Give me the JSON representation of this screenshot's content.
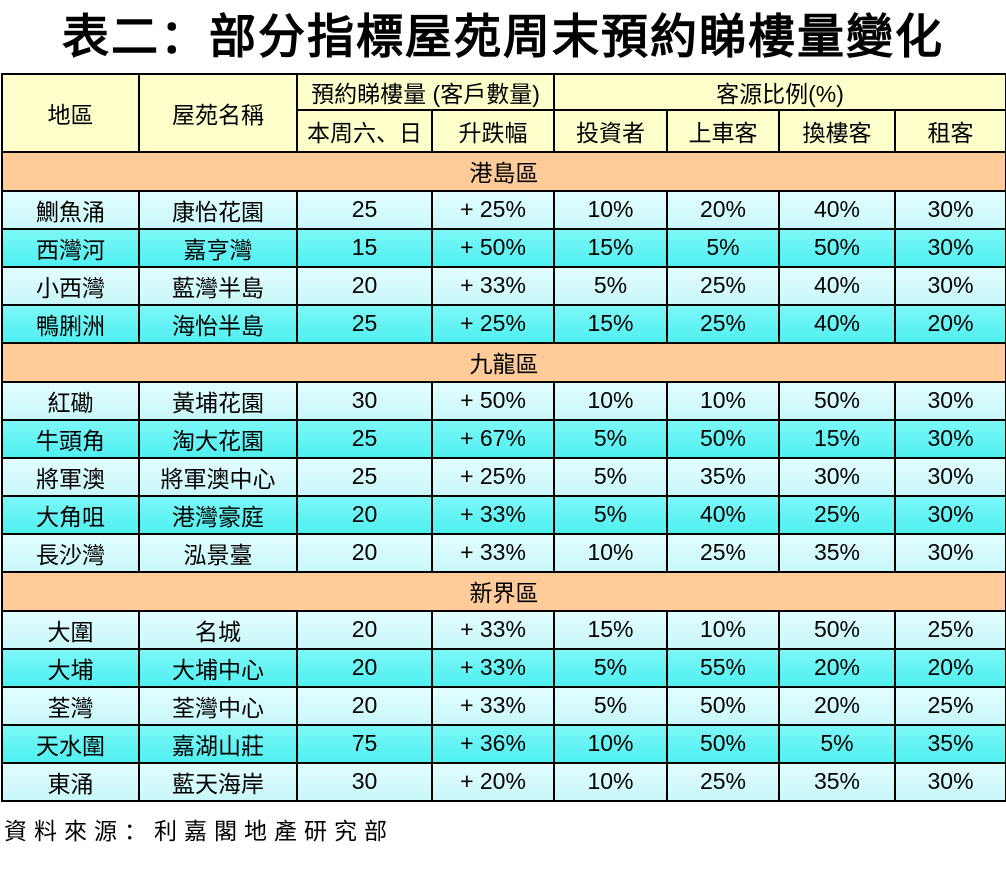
{
  "title": "表二：部分指標屋苑周末預約睇樓量變化",
  "source_note": "資料來源：利嘉閣地產研究部",
  "colors": {
    "header_bg": "#FFFFCC",
    "section_bg": "#FFCC99",
    "row_light": "#CCFFFF",
    "row_dark": "#5FF3F3",
    "border": "#000000",
    "background": "#FFFFFF"
  },
  "table": {
    "headers": {
      "district": "地區",
      "estate": "屋苑名稱",
      "bookings_group": "預約睇樓量 (客戶數量)",
      "bookings_sub": [
        "本周六、日",
        "升跌幅"
      ],
      "source_group": "客源比例(%)",
      "source_sub": [
        "投資者",
        "上車客",
        "換樓客",
        "租客"
      ]
    },
    "sections": [
      {
        "name": "港島區",
        "rows": [
          [
            "鰂魚涌",
            "康怡花園",
            "25",
            "+ 25%",
            "10%",
            "20%",
            "40%",
            "30%"
          ],
          [
            "西灣河",
            "嘉亨灣",
            "15",
            "+ 50%",
            "15%",
            "5%",
            "50%",
            "30%"
          ],
          [
            "小西灣",
            "藍灣半島",
            "20",
            "+ 33%",
            "5%",
            "25%",
            "40%",
            "30%"
          ],
          [
            "鴨脷洲",
            "海怡半島",
            "25",
            "+ 25%",
            "15%",
            "25%",
            "40%",
            "20%"
          ]
        ]
      },
      {
        "name": "九龍區",
        "rows": [
          [
            "紅磡",
            "黃埔花園",
            "30",
            "+ 50%",
            "10%",
            "10%",
            "50%",
            "30%"
          ],
          [
            "牛頭角",
            "淘大花園",
            "25",
            "+ 67%",
            "5%",
            "50%",
            "15%",
            "30%"
          ],
          [
            "將軍澳",
            "將軍澳中心",
            "25",
            "+ 25%",
            "5%",
            "35%",
            "30%",
            "30%"
          ],
          [
            "大角咀",
            "港灣豪庭",
            "20",
            "+ 33%",
            "5%",
            "40%",
            "25%",
            "30%"
          ],
          [
            "長沙灣",
            "泓景臺",
            "20",
            "+ 33%",
            "10%",
            "25%",
            "35%",
            "30%"
          ]
        ]
      },
      {
        "name": "新界區",
        "rows": [
          [
            "大圍",
            "名城",
            "20",
            "+ 33%",
            "15%",
            "10%",
            "50%",
            "25%"
          ],
          [
            "大埔",
            "大埔中心",
            "20",
            "+ 33%",
            "5%",
            "55%",
            "20%",
            "20%"
          ],
          [
            "荃灣",
            "荃灣中心",
            "20",
            "+ 33%",
            "5%",
            "50%",
            "20%",
            "25%"
          ],
          [
            "天水圍",
            "嘉湖山莊",
            "75",
            "+ 36%",
            "10%",
            "50%",
            "5%",
            "35%"
          ],
          [
            "東涌",
            "藍天海岸",
            "30",
            "+ 20%",
            "10%",
            "25%",
            "35%",
            "30%"
          ]
        ]
      }
    ]
  }
}
